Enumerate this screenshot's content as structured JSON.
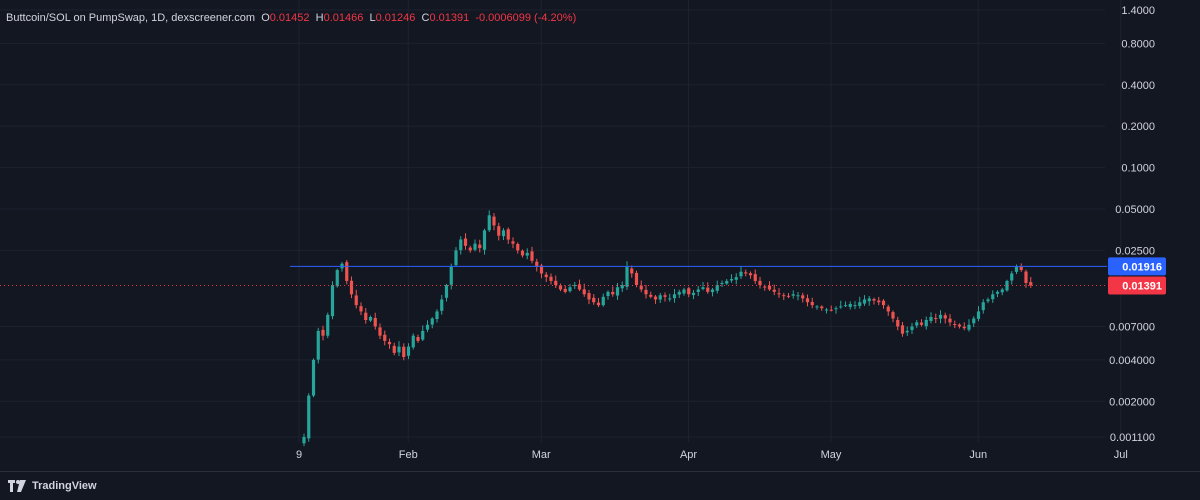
{
  "legend": {
    "title": "Buttcoin/SOL on PumpSwap, 1D, dexscreener.com",
    "o_label": "O",
    "o_value": "0.01452",
    "h_label": "H",
    "h_value": "0.01466",
    "l_label": "L",
    "l_value": "0.01246",
    "c_label": "C",
    "c_value": "0.01391",
    "change": "-0.0006099 (-4.20%)"
  },
  "brand": {
    "name": "TradingView"
  },
  "colors": {
    "up": "#26a69a",
    "down": "#ef5350",
    "background": "#131722",
    "grid": "#1e222d",
    "hline": "#2962ff",
    "price_badge": "#f23645",
    "hline_badge": "#2962ff"
  },
  "chart_data": {
    "type": "candlestick",
    "y_scale": "log",
    "x_start_date": "2025-01-08",
    "ylim": [
      0.00095,
      1.5
    ],
    "y_ticks": [
      "1.4000",
      "0.8000",
      "0.4000",
      "0.2000",
      "0.1000",
      "0.05000",
      "0.02500",
      "0.007000",
      "0.004000",
      "0.002000",
      "0.001100"
    ],
    "y_tick_values": [
      1.4,
      0.8,
      0.4,
      0.2,
      0.1,
      0.05,
      0.025,
      0.007,
      0.004,
      0.002,
      0.0011
    ],
    "x_ticks": [
      {
        "label": "9",
        "date": "2025-01-09"
      },
      {
        "label": "Feb",
        "date": "2025-02-01"
      },
      {
        "label": "Mar",
        "date": "2025-03-01"
      },
      {
        "label": "Apr",
        "date": "2025-04-01"
      },
      {
        "label": "May",
        "date": "2025-05-01"
      },
      {
        "label": "Jun",
        "date": "2025-06-01"
      },
      {
        "label": "Jul",
        "date": "2025-07-01"
      }
    ],
    "horizontal_line": {
      "value": 0.01916,
      "label": "0.01916"
    },
    "last_price": {
      "value": 0.01391,
      "label": "0.01391"
    },
    "closes": [
      0.0011,
      0.0022,
      0.004,
      0.0065,
      0.006,
      0.0085,
      0.014,
      0.018,
      0.02,
      0.015,
      0.012,
      0.01,
      0.009,
      0.0078,
      0.0082,
      0.007,
      0.006,
      0.0055,
      0.0052,
      0.0045,
      0.005,
      0.0042,
      0.005,
      0.006,
      0.0055,
      0.0065,
      0.0072,
      0.008,
      0.009,
      0.011,
      0.014,
      0.019,
      0.025,
      0.03,
      0.027,
      0.025,
      0.028,
      0.026,
      0.035,
      0.045,
      0.038,
      0.032,
      0.035,
      0.03,
      0.028,
      0.025,
      0.023,
      0.024,
      0.021,
      0.019,
      0.017,
      0.016,
      0.015,
      0.014,
      0.013,
      0.0125,
      0.0135,
      0.014,
      0.013,
      0.012,
      0.011,
      0.0105,
      0.01,
      0.0115,
      0.0125,
      0.012,
      0.0135,
      0.014,
      0.019,
      0.017,
      0.014,
      0.013,
      0.012,
      0.0115,
      0.011,
      0.0118,
      0.0115,
      0.0112,
      0.012,
      0.0125,
      0.013,
      0.012,
      0.0123,
      0.013,
      0.0135,
      0.0125,
      0.013,
      0.014,
      0.0145,
      0.015,
      0.0155,
      0.016,
      0.0175,
      0.017,
      0.0165,
      0.015,
      0.014,
      0.0135,
      0.013,
      0.0125,
      0.012,
      0.0118,
      0.0115,
      0.012,
      0.0118,
      0.0112,
      0.0105,
      0.01,
      0.0098,
      0.0095,
      0.0093,
      0.0092,
      0.0095,
      0.0098,
      0.01,
      0.0102,
      0.01,
      0.0105,
      0.011,
      0.0112,
      0.0108,
      0.0105,
      0.01,
      0.009,
      0.008,
      0.007,
      0.0062,
      0.0065,
      0.007,
      0.0075,
      0.0072,
      0.0078,
      0.0082,
      0.008,
      0.0085,
      0.008,
      0.0075,
      0.0072,
      0.007,
      0.0068,
      0.0072,
      0.008,
      0.009,
      0.0105,
      0.011,
      0.012,
      0.0125,
      0.013,
      0.015,
      0.017,
      0.019,
      0.018,
      0.0145,
      0.0139
    ]
  }
}
